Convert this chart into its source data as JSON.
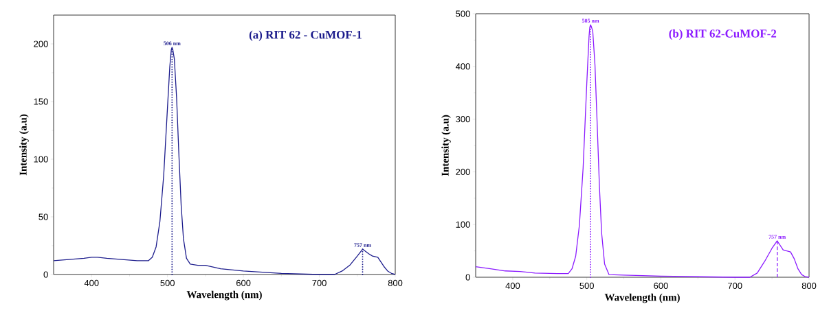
{
  "chart_data": [
    {
      "type": "line",
      "title": "(a) RIT 62 - CuMOF-1",
      "xlabel": "Wavelength (nm)",
      "ylabel": "Intensity (a.u)",
      "xlim": [
        350,
        800
      ],
      "ylim": [
        0,
        225
      ],
      "xticks": [
        400,
        500,
        600,
        700,
        800
      ],
      "yticks": [
        0,
        50,
        100,
        150,
        200
      ],
      "grid": false,
      "annotations": [
        {
          "text": "506 nm",
          "x": 506,
          "y": 197
        },
        {
          "text": "757 nm",
          "x": 757,
          "y": 22
        }
      ],
      "series": [
        {
          "color": "#1c1c8c",
          "line_style": "solid",
          "x": [
            350,
            370,
            390,
            400,
            408,
            420,
            440,
            460,
            475,
            480,
            485,
            490,
            495,
            500,
            503,
            505,
            506,
            507,
            509,
            512,
            515,
            518,
            521,
            525,
            530,
            540,
            550,
            570,
            600,
            650,
            700,
            720,
            730,
            740,
            750,
            757,
            765,
            770,
            777,
            785,
            790,
            795,
            800
          ],
          "values": [
            12,
            13,
            14,
            15,
            15,
            14,
            13,
            12,
            12,
            15,
            24,
            46,
            86,
            145,
            180,
            195,
            197,
            195,
            187,
            153,
            104,
            60,
            31,
            14,
            9,
            8,
            8,
            5,
            3,
            1,
            0,
            0,
            3,
            8,
            16,
            22,
            18,
            16,
            15,
            7,
            3,
            1,
            0
          ]
        },
        {
          "color": "#1c1c8c",
          "line_style": "dotted",
          "x": [
            506,
            506
          ],
          "values": [
            0,
            197
          ]
        },
        {
          "color": "#1c1c8c",
          "line_style": "dotted",
          "x": [
            757,
            757
          ],
          "values": [
            0,
            22
          ]
        }
      ]
    },
    {
      "type": "line",
      "title": "(b) RIT 62-CuMOF-2",
      "xlabel": "Wavelength (nm)",
      "ylabel": "Intensity (a.u)",
      "xlim": [
        350,
        800
      ],
      "ylim": [
        0,
        500
      ],
      "xticks": [
        400,
        500,
        600,
        700,
        800
      ],
      "yticks": [
        0,
        100,
        200,
        300,
        400,
        500
      ],
      "grid": false,
      "annotations": [
        {
          "text": "505 nm",
          "x": 505,
          "y": 479
        },
        {
          "text": "757 nm",
          "x": 757,
          "y": 69
        }
      ],
      "series": [
        {
          "color": "#8b1aff",
          "line_style": "solid",
          "x": [
            350,
            370,
            390,
            410,
            430,
            460,
            475,
            480,
            485,
            490,
            495,
            500,
            503,
            504,
            505,
            506,
            508,
            511,
            514,
            517,
            520,
            524,
            530,
            550,
            600,
            700,
            720,
            730,
            740,
            750,
            757,
            765,
            770,
            775,
            780,
            785,
            790,
            795,
            800
          ],
          "values": [
            20,
            16,
            12,
            11,
            8,
            7,
            7,
            16,
            40,
            99,
            207,
            369,
            457,
            474,
            479,
            476,
            467,
            403,
            290,
            173,
            84,
            25,
            5,
            4,
            2,
            0,
            0,
            8,
            30,
            55,
            69,
            52,
            50,
            48,
            35,
            16,
            5,
            1,
            0
          ]
        },
        {
          "color": "#8b1aff",
          "line_style": "dotted",
          "x": [
            505,
            505
          ],
          "values": [
            0,
            479
          ]
        },
        {
          "color": "#8b1aff",
          "line_style": "dashed",
          "x": [
            757,
            757
          ],
          "values": [
            0,
            69
          ]
        }
      ]
    }
  ]
}
